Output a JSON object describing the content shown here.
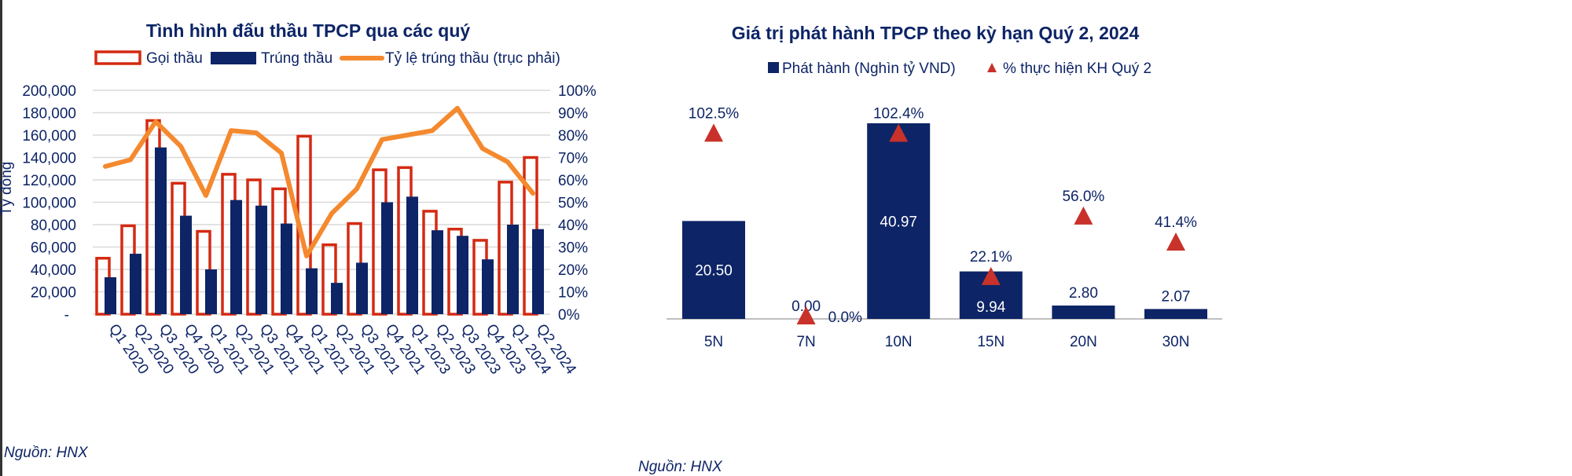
{
  "source_left": "Nguồn: HNX",
  "source_right": "Nguồn: HNX",
  "colors": {
    "navy": "#0d2466",
    "red": "#d42a12",
    "orange": "#f4892e",
    "triangle": "#c8322a",
    "grid": "#d9d9d9"
  },
  "chart_data": [
    {
      "type": "bar",
      "title": "Tình hình đấu thầu TPCP qua các quý",
      "ylabel": "Tỷ đồng",
      "ylim": [
        0,
        200000
      ],
      "y2lim": [
        0,
        100
      ],
      "yticks": [
        "-",
        "20,000",
        "40,000",
        "60,000",
        "80,000",
        "100,000",
        "120,000",
        "140,000",
        "160,000",
        "180,000",
        "200,000"
      ],
      "y2ticks": [
        "0%",
        "10%",
        "20%",
        "30%",
        "40%",
        "50%",
        "60%",
        "70%",
        "80%",
        "90%",
        "100%"
      ],
      "grid": true,
      "legend_position": "top",
      "categories": [
        "Q1 2020",
        "Q2 2020",
        "Q3 2020",
        "Q4 2020",
        "Q1 2021",
        "Q2 2021",
        "Q3 2021",
        "Q4 2021",
        "Q1 2021",
        "Q2 2021",
        "Q3 2021",
        "Q4 2021",
        "Q1 2023",
        "Q2 2023",
        "Q3 2023",
        "Q4 2023",
        "Q1 2024",
        "Q2 2024"
      ],
      "series": [
        {
          "name": "Gọi thầu",
          "kind": "bar-outline",
          "values": [
            50000,
            79000,
            173000,
            117000,
            74000,
            125000,
            120000,
            112000,
            159000,
            62000,
            81000,
            129000,
            131000,
            92000,
            76000,
            66000,
            118000,
            140000
          ]
        },
        {
          "name": "Trúng thầu",
          "kind": "bar",
          "values": [
            33000,
            54000,
            149000,
            88000,
            40000,
            102000,
            97000,
            81000,
            41000,
            28000,
            46000,
            100000,
            105000,
            75000,
            70000,
            49000,
            80000,
            76000
          ]
        },
        {
          "name": "Tỷ lệ trúng thầu (trục phải)",
          "kind": "line",
          "axis": "right",
          "values": [
            66,
            69,
            86,
            75,
            53,
            82,
            81,
            72,
            26,
            45,
            56,
            78,
            80,
            82,
            92,
            74,
            68,
            54
          ]
        }
      ]
    },
    {
      "type": "bar",
      "title": "Giá trị phát hành TPCP theo kỳ hạn Quý 2, 2024",
      "legend_position": "top",
      "categories": [
        "5N",
        "7N",
        "10N",
        "15N",
        "20N",
        "30N"
      ],
      "series": [
        {
          "name": "Phát hành (Nghìn tỷ VND)",
          "kind": "bar",
          "values": [
            20.5,
            0.0,
            40.97,
            9.94,
            2.8,
            2.07
          ],
          "labels": [
            "20.50",
            "0.00",
            "40.97",
            "9.94",
            "2.80",
            "2.07"
          ]
        },
        {
          "name": "% thực hiện KH Quý 2",
          "kind": "triangle-marker",
          "values": [
            102.5,
            0.0,
            102.4,
            22.1,
            56.0,
            41.4
          ],
          "labels": [
            "102.5%",
            "0.0%",
            "102.4%",
            "22.1%",
            "56.0%",
            "41.4%"
          ]
        }
      ]
    }
  ]
}
